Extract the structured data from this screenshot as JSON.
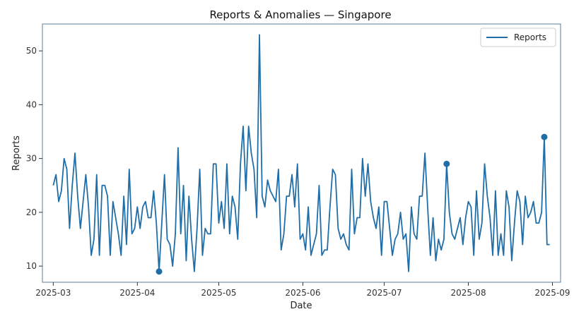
{
  "chart_data": {
    "type": "line",
    "title": "Reports & Anomalies — Singapore",
    "xlabel": "Date",
    "ylabel": "Reports",
    "ylim": [
      7,
      55
    ],
    "xlim": [
      "2025-02-25",
      "2025-09-04"
    ],
    "yticks": [
      10,
      20,
      30,
      40,
      50
    ],
    "xticks": [
      "2025-03",
      "2025-04",
      "2025-05",
      "2025-06",
      "2025-07",
      "2025-08",
      "2025-09"
    ],
    "grid": false,
    "legend": {
      "placement": "top-right",
      "entries": [
        "Reports"
      ]
    },
    "colors": {
      "line": "#1f6ea8",
      "axis": "#5b7f9f",
      "text": "#222222"
    },
    "series": [
      {
        "name": "Reports",
        "start_date": "2025-03-01",
        "values": [
          25,
          27,
          22,
          24,
          30,
          28,
          17,
          25,
          31,
          23,
          17,
          22,
          27,
          21,
          12,
          15,
          27,
          12,
          25,
          25,
          23,
          12,
          22,
          19,
          16,
          12,
          23,
          14,
          28,
          16,
          17,
          21,
          17,
          21,
          22,
          19,
          19,
          24,
          18,
          9,
          18,
          27,
          15,
          14,
          10,
          16,
          32,
          16,
          25,
          11,
          23,
          15,
          9,
          17,
          28,
          12,
          17,
          16,
          16,
          29,
          29,
          18,
          22,
          17,
          29,
          16,
          23,
          21,
          15,
          29,
          36,
          24,
          36,
          31,
          28,
          19,
          53,
          23,
          21,
          26,
          24,
          23,
          22,
          28,
          13,
          16,
          23,
          23,
          27,
          21,
          29,
          15,
          16,
          13,
          21,
          12,
          14,
          16,
          25,
          12,
          13,
          13,
          21,
          28,
          27,
          17,
          15,
          16,
          14,
          13,
          28,
          16,
          19,
          19,
          30,
          23,
          29,
          22,
          19,
          17,
          21,
          12,
          22,
          22,
          17,
          12,
          15,
          16,
          20,
          15,
          16,
          9,
          21,
          16,
          15,
          23,
          23,
          31,
          21,
          12,
          19,
          11,
          15,
          13,
          15,
          29,
          20,
          16,
          15,
          17,
          19,
          14,
          19,
          22,
          21,
          12,
          24,
          15,
          18,
          29,
          23,
          19,
          12,
          24,
          12,
          16,
          12,
          24,
          21,
          11,
          18,
          24,
          22,
          14,
          23,
          19,
          20,
          22,
          18,
          18,
          20,
          34,
          14,
          14
        ]
      }
    ],
    "anomalies": [
      {
        "x": "2025-04-09",
        "y": 9
      },
      {
        "x": "2025-07-24",
        "y": 29
      },
      {
        "x": "2025-08-29",
        "y": 34
      }
    ]
  }
}
